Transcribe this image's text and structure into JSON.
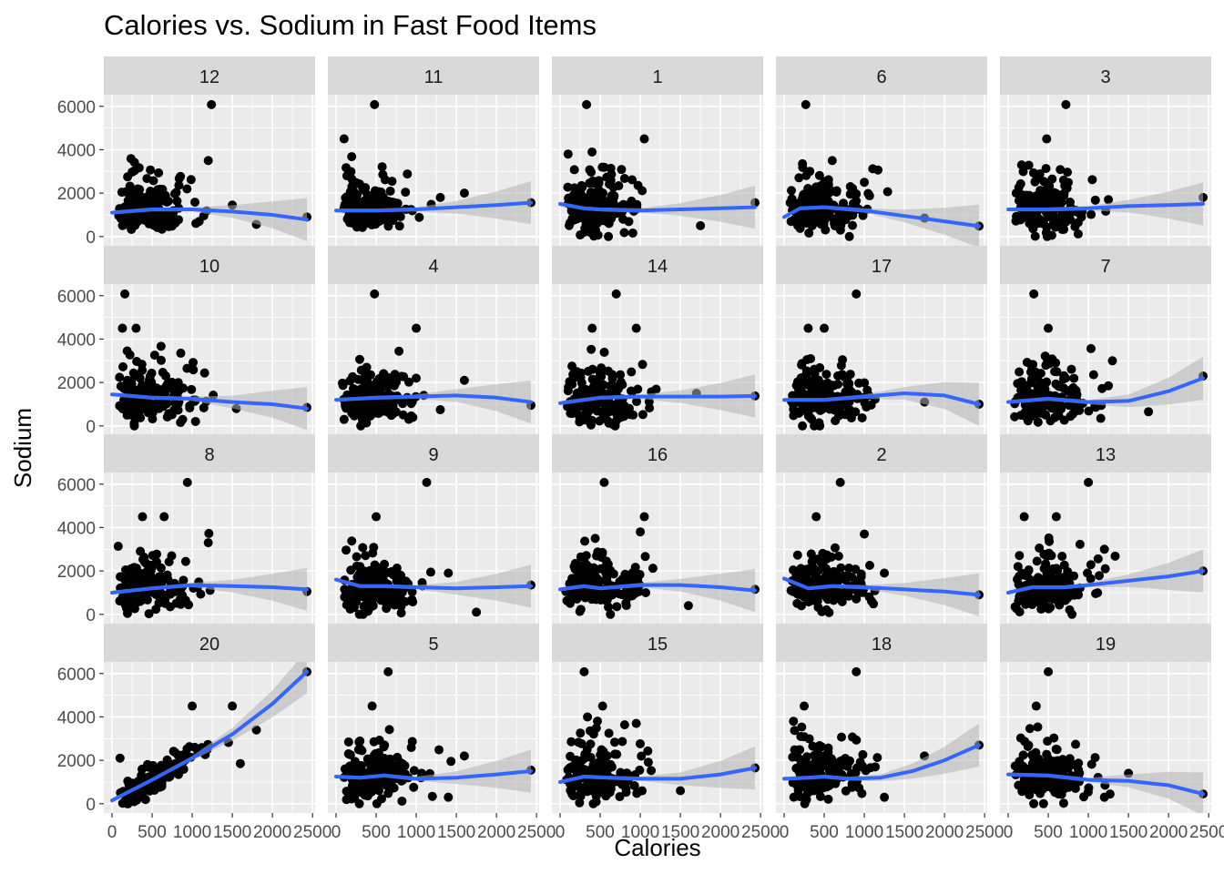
{
  "chart_data": {
    "type": "scatter",
    "title": "Calories vs. Sodium in Fast Food Items",
    "xlabel": "Calories",
    "ylabel": "Sodium",
    "xlim": [
      0,
      2430
    ],
    "ylim": [
      -50,
      6200
    ],
    "x_ticks": [
      0,
      500,
      1000,
      1500,
      2000,
      2500
    ],
    "x_tick_labels": [
      "0",
      "500",
      "1000",
      "1500",
      "2000",
      "2500"
    ],
    "y_ticks": [
      0,
      2000,
      4000,
      6000
    ],
    "y_tick_labels": [
      "0",
      "2000",
      "4000",
      "6000"
    ],
    "facet_layout": {
      "columns": 5,
      "rows": 4
    },
    "grid": true,
    "smooth": "loess with confidence band",
    "colors": {
      "panel_bg": "#ebebeb",
      "strip_bg": "#d9d9d9",
      "gridline": "#ffffff",
      "points": "#000000",
      "smooth_line": "#3366ff",
      "confidence_band": "#b3b3b3"
    },
    "panels": [
      {
        "label": "12",
        "smooth": [
          [
            0,
            1100
          ],
          [
            500,
            1250
          ],
          [
            1000,
            1250
          ],
          [
            1500,
            1150
          ],
          [
            2000,
            1000
          ],
          [
            2430,
            780
          ]
        ],
        "outliers": [
          [
            1240,
            6080
          ],
          [
            2430,
            900
          ],
          [
            1500,
            1450
          ],
          [
            1800,
            560
          ],
          [
            1200,
            3500
          ]
        ]
      },
      {
        "label": "11",
        "smooth": [
          [
            0,
            1200
          ],
          [
            500,
            1200
          ],
          [
            1000,
            1250
          ],
          [
            1500,
            1350
          ],
          [
            2000,
            1450
          ],
          [
            2430,
            1560
          ]
        ],
        "outliers": [
          [
            480,
            6080
          ],
          [
            2430,
            1560
          ],
          [
            1600,
            2000
          ],
          [
            1300,
            1800
          ],
          [
            100,
            4500
          ]
        ]
      },
      {
        "label": "1",
        "smooth": [
          [
            0,
            1500
          ],
          [
            300,
            1300
          ],
          [
            500,
            1250
          ],
          [
            1000,
            1200
          ],
          [
            1500,
            1250
          ],
          [
            2000,
            1300
          ],
          [
            2430,
            1350
          ]
        ],
        "outliers": [
          [
            330,
            6080
          ],
          [
            2430,
            1560
          ],
          [
            1050,
            4500
          ],
          [
            1750,
            500
          ],
          [
            100,
            3800
          ]
        ]
      },
      {
        "label": "6",
        "smooth": [
          [
            0,
            900
          ],
          [
            200,
            1300
          ],
          [
            500,
            1350
          ],
          [
            1000,
            1200
          ],
          [
            1500,
            950
          ],
          [
            2000,
            700
          ],
          [
            2430,
            480
          ]
        ],
        "outliers": [
          [
            270,
            6080
          ],
          [
            2430,
            480
          ],
          [
            1000,
            2500
          ],
          [
            600,
            3500
          ],
          [
            1750,
            850
          ]
        ]
      },
      {
        "label": "3",
        "smooth": [
          [
            0,
            1250
          ],
          [
            500,
            1250
          ],
          [
            1000,
            1300
          ],
          [
            1500,
            1400
          ],
          [
            2000,
            1450
          ],
          [
            2430,
            1500
          ]
        ],
        "outliers": [
          [
            720,
            6080
          ],
          [
            2430,
            1800
          ],
          [
            480,
            4500
          ],
          [
            1250,
            1700
          ],
          [
            100,
            2000
          ]
        ]
      },
      {
        "label": "10",
        "smooth": [
          [
            0,
            1450
          ],
          [
            500,
            1300
          ],
          [
            1000,
            1250
          ],
          [
            1500,
            1100
          ],
          [
            2000,
            1000
          ],
          [
            2430,
            800
          ]
        ],
        "outliers": [
          [
            160,
            6080
          ],
          [
            2430,
            850
          ],
          [
            130,
            4500
          ],
          [
            300,
            4500
          ],
          [
            1550,
            800
          ]
        ]
      },
      {
        "label": "4",
        "smooth": [
          [
            0,
            1200
          ],
          [
            500,
            1300
          ],
          [
            1000,
            1350
          ],
          [
            1500,
            1400
          ],
          [
            2000,
            1300
          ],
          [
            2430,
            1100
          ]
        ],
        "outliers": [
          [
            480,
            6080
          ],
          [
            2430,
            950
          ],
          [
            1000,
            4500
          ],
          [
            1600,
            2100
          ],
          [
            100,
            300
          ]
        ]
      },
      {
        "label": "14",
        "smooth": [
          [
            0,
            1050
          ],
          [
            500,
            1300
          ],
          [
            1000,
            1350
          ],
          [
            1500,
            1350
          ],
          [
            2000,
            1350
          ],
          [
            2430,
            1380
          ]
        ],
        "outliers": [
          [
            700,
            6080
          ],
          [
            2430,
            1380
          ],
          [
            400,
            4500
          ],
          [
            950,
            4500
          ],
          [
            1700,
            1500
          ]
        ]
      },
      {
        "label": "17",
        "smooth": [
          [
            0,
            1200
          ],
          [
            500,
            1200
          ],
          [
            1000,
            1350
          ],
          [
            1500,
            1500
          ],
          [
            2000,
            1400
          ],
          [
            2430,
            1000
          ]
        ],
        "outliers": [
          [
            900,
            6080
          ],
          [
            2430,
            1000
          ],
          [
            300,
            4500
          ],
          [
            500,
            4500
          ],
          [
            1750,
            1100
          ]
        ]
      },
      {
        "label": "7",
        "smooth": [
          [
            0,
            1100
          ],
          [
            500,
            1250
          ],
          [
            1000,
            1100
          ],
          [
            1500,
            1150
          ],
          [
            2000,
            1600
          ],
          [
            2430,
            2200
          ]
        ],
        "outliers": [
          [
            320,
            6080
          ],
          [
            2430,
            2300
          ],
          [
            500,
            4500
          ],
          [
            1750,
            650
          ],
          [
            1300,
            3000
          ]
        ]
      },
      {
        "label": "8",
        "smooth": [
          [
            0,
            1000
          ],
          [
            500,
            1200
          ],
          [
            1000,
            1350
          ],
          [
            1500,
            1300
          ],
          [
            2000,
            1250
          ],
          [
            2430,
            1150
          ]
        ],
        "outliers": [
          [
            940,
            6080
          ],
          [
            2430,
            1050
          ],
          [
            380,
            4500
          ],
          [
            650,
            4500
          ],
          [
            1200,
            3300
          ]
        ]
      },
      {
        "label": "9",
        "smooth": [
          [
            0,
            1600
          ],
          [
            300,
            1300
          ],
          [
            600,
            1300
          ],
          [
            1000,
            1250
          ],
          [
            1500,
            1200
          ],
          [
            2000,
            1250
          ],
          [
            2430,
            1300
          ]
        ],
        "outliers": [
          [
            1130,
            6080
          ],
          [
            2430,
            1350
          ],
          [
            500,
            4500
          ],
          [
            1750,
            100
          ],
          [
            1400,
            1900
          ]
        ]
      },
      {
        "label": "16",
        "smooth": [
          [
            0,
            1150
          ],
          [
            300,
            1300
          ],
          [
            500,
            1200
          ],
          [
            1000,
            1350
          ],
          [
            1500,
            1350
          ],
          [
            2000,
            1250
          ],
          [
            2430,
            1100
          ]
        ],
        "outliers": [
          [
            550,
            6080
          ],
          [
            2430,
            1150
          ],
          [
            1050,
            4500
          ],
          [
            1000,
            3800
          ],
          [
            1600,
            400
          ]
        ]
      },
      {
        "label": "2",
        "smooth": [
          [
            0,
            1650
          ],
          [
            300,
            1200
          ],
          [
            600,
            1300
          ],
          [
            1000,
            1250
          ],
          [
            1500,
            1150
          ],
          [
            2000,
            1050
          ],
          [
            2430,
            900
          ]
        ],
        "outliers": [
          [
            700,
            6080
          ],
          [
            2430,
            900
          ],
          [
            400,
            4500
          ],
          [
            1250,
            1900
          ],
          [
            1000,
            3700
          ]
        ]
      },
      {
        "label": "13",
        "smooth": [
          [
            0,
            1000
          ],
          [
            300,
            1250
          ],
          [
            700,
            1250
          ],
          [
            1000,
            1350
          ],
          [
            1500,
            1550
          ],
          [
            2000,
            1750
          ],
          [
            2430,
            2000
          ]
        ],
        "outliers": [
          [
            1000,
            6080
          ],
          [
            2430,
            2000
          ],
          [
            600,
            4500
          ],
          [
            200,
            4500
          ],
          [
            1200,
            3000
          ]
        ]
      },
      {
        "label": "20",
        "smooth": [
          [
            0,
            150
          ],
          [
            500,
            1100
          ],
          [
            1000,
            2100
          ],
          [
            1500,
            3200
          ],
          [
            2000,
            4600
          ],
          [
            2430,
            6080
          ]
        ],
        "outliers": [
          [
            2430,
            6080
          ],
          [
            1500,
            4500
          ],
          [
            1800,
            3400
          ],
          [
            1000,
            4500
          ],
          [
            100,
            2100
          ],
          [
            1600,
            1850
          ]
        ]
      },
      {
        "label": "5",
        "smooth": [
          [
            0,
            1250
          ],
          [
            300,
            1200
          ],
          [
            600,
            1300
          ],
          [
            1000,
            1150
          ],
          [
            1500,
            1200
          ],
          [
            2000,
            1350
          ],
          [
            2430,
            1500
          ]
        ],
        "outliers": [
          [
            650,
            6080
          ],
          [
            2430,
            1550
          ],
          [
            450,
            4500
          ],
          [
            1600,
            2200
          ],
          [
            1400,
            300
          ]
        ]
      },
      {
        "label": "15",
        "smooth": [
          [
            0,
            1000
          ],
          [
            300,
            1250
          ],
          [
            600,
            1200
          ],
          [
            1000,
            1150
          ],
          [
            1500,
            1150
          ],
          [
            2000,
            1350
          ],
          [
            2430,
            1650
          ]
        ],
        "outliers": [
          [
            300,
            6080
          ],
          [
            2430,
            1650
          ],
          [
            530,
            4500
          ],
          [
            950,
            3700
          ],
          [
            1500,
            600
          ]
        ]
      },
      {
        "label": "18",
        "smooth": [
          [
            0,
            1150
          ],
          [
            300,
            1200
          ],
          [
            500,
            1250
          ],
          [
            800,
            1150
          ],
          [
            1200,
            1200
          ],
          [
            1600,
            1500
          ],
          [
            2000,
            2000
          ],
          [
            2430,
            2700
          ]
        ],
        "outliers": [
          [
            900,
            6080
          ],
          [
            2430,
            2700
          ],
          [
            250,
            4500
          ],
          [
            1750,
            2200
          ],
          [
            1250,
            300
          ]
        ]
      },
      {
        "label": "19",
        "smooth": [
          [
            0,
            1350
          ],
          [
            500,
            1300
          ],
          [
            1000,
            1100
          ],
          [
            1500,
            1050
          ],
          [
            2000,
            850
          ],
          [
            2430,
            450
          ]
        ],
        "outliers": [
          [
            500,
            6080
          ],
          [
            2430,
            450
          ],
          [
            350,
            4500
          ],
          [
            1500,
            1400
          ],
          [
            1200,
            300
          ]
        ]
      }
    ]
  }
}
